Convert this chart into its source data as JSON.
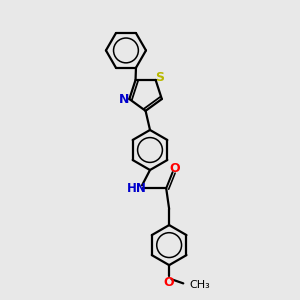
{
  "bg_color": "#e8e8e8",
  "bond_color": "#000000",
  "bond_width": 1.6,
  "S_color": "#b8b800",
  "N_color": "#0000cc",
  "O_color": "#ff0000",
  "C_color": "#000000",
  "xlim": [
    0,
    10
  ],
  "ylim": [
    0,
    10
  ]
}
